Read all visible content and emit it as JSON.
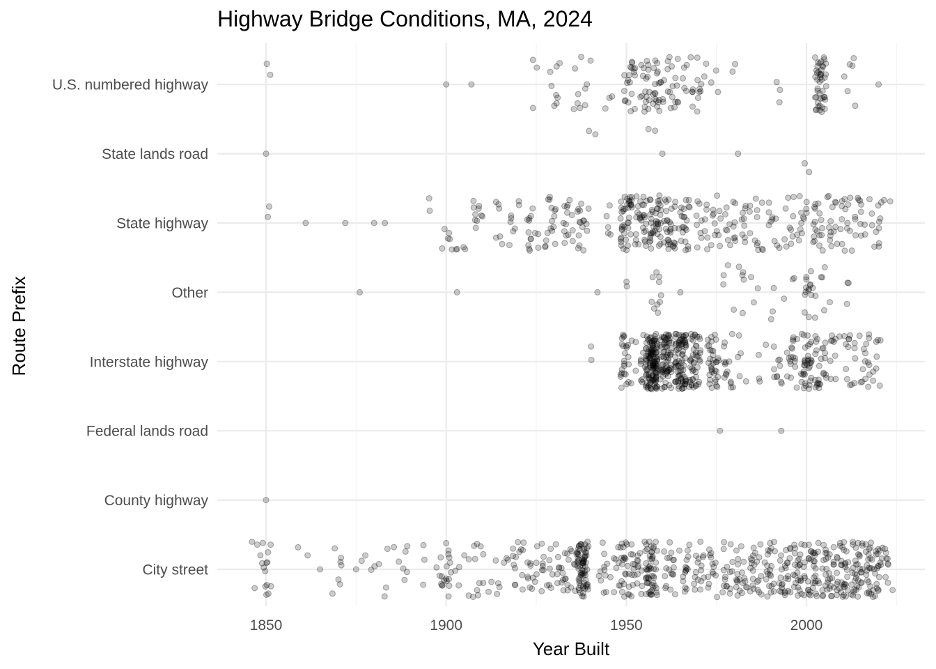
{
  "chart_data": {
    "type": "scatter",
    "title": "Highway Bridge Conditions, MA, 2024",
    "xlabel": "Year Built",
    "ylabel": "Route Prefix",
    "xlim": [
      1840,
      2027
    ],
    "x_ticks": [
      "1850",
      "1900",
      "1950",
      "2000"
    ],
    "x_tick_values": [
      1850,
      1900,
      1950,
      2000
    ],
    "categories": [
      "City street",
      "County highway",
      "Federal lands road",
      "Interstate highway",
      "Other",
      "State highway",
      "State lands road",
      "U.S. numbered highway"
    ],
    "grid": true,
    "legend": "none",
    "jitter_height": 0.4,
    "point_color": "#000000",
    "point_alpha": 0.2,
    "series": [
      {
        "category": "City street",
        "groups": [
          {
            "year": 1846,
            "n": 3
          },
          {
            "year": 1850,
            "n": 14
          },
          {
            "year": 1860,
            "n": 2
          },
          {
            "year": 1865,
            "n": 1
          },
          {
            "year": 1870,
            "n": 7
          },
          {
            "year": 1875,
            "n": 1
          },
          {
            "year": 1878,
            "n": 2
          },
          {
            "year": 1880,
            "n": 3
          },
          {
            "year": 1884,
            "n": 3
          },
          {
            "year": 1887,
            "n": 4
          },
          {
            "year": 1890,
            "n": 3
          },
          {
            "year": 1895,
            "n": 3
          },
          {
            "year": 1897,
            "n": 2
          },
          {
            "year": 1900,
            "n": 16
          },
          {
            "year": 1902,
            "n": 4
          },
          {
            "year": 1905,
            "n": 4
          },
          {
            "year": 1909,
            "n": 10
          },
          {
            "year": 1913,
            "n": 5
          },
          {
            "year": 1916,
            "n": 4
          },
          {
            "year": 1920,
            "n": 14
          },
          {
            "year": 1924,
            "n": 12
          },
          {
            "year": 1928,
            "n": 14
          },
          {
            "year": 1932,
            "n": 14
          },
          {
            "year": 1935,
            "n": 14
          },
          {
            "year": 1938,
            "n": 70
          },
          {
            "year": 1944,
            "n": 12
          },
          {
            "year": 1948,
            "n": 18
          },
          {
            "year": 1951,
            "n": 22
          },
          {
            "year": 1954,
            "n": 14
          },
          {
            "year": 1957,
            "n": 50
          },
          {
            "year": 1962,
            "n": 18
          },
          {
            "year": 1966,
            "n": 16
          },
          {
            "year": 1970,
            "n": 16
          },
          {
            "year": 1974,
            "n": 14
          },
          {
            "year": 1978,
            "n": 16
          },
          {
            "year": 1982,
            "n": 20
          },
          {
            "year": 1986,
            "n": 22
          },
          {
            "year": 1990,
            "n": 22
          },
          {
            "year": 1994,
            "n": 26
          },
          {
            "year": 1998,
            "n": 30
          },
          {
            "year": 2002,
            "n": 32
          },
          {
            "year": 2006,
            "n": 30
          },
          {
            "year": 2010,
            "n": 34
          },
          {
            "year": 2014,
            "n": 34
          },
          {
            "year": 2018,
            "n": 30
          },
          {
            "year": 2021,
            "n": 20
          },
          {
            "year": 2024,
            "n": 3
          }
        ]
      },
      {
        "category": "County highway",
        "groups": [
          {
            "year": 1850,
            "n": 1
          }
        ]
      },
      {
        "category": "Federal lands road",
        "groups": [
          {
            "year": 1976,
            "n": 1
          },
          {
            "year": 1993,
            "n": 1
          }
        ]
      },
      {
        "category": "Interstate highway",
        "groups": [
          {
            "year": 1940,
            "n": 2
          },
          {
            "year": 1950,
            "n": 26
          },
          {
            "year": 1954,
            "n": 12
          },
          {
            "year": 1957,
            "n": 130
          },
          {
            "year": 1961,
            "n": 70
          },
          {
            "year": 1965,
            "n": 80
          },
          {
            "year": 1969,
            "n": 45
          },
          {
            "year": 1974,
            "n": 35
          },
          {
            "year": 1978,
            "n": 15
          },
          {
            "year": 1982,
            "n": 5
          },
          {
            "year": 1988,
            "n": 4
          },
          {
            "year": 1992,
            "n": 10
          },
          {
            "year": 1996,
            "n": 18
          },
          {
            "year": 2000,
            "n": 35
          },
          {
            "year": 2004,
            "n": 25
          },
          {
            "year": 2008,
            "n": 10
          },
          {
            "year": 2012,
            "n": 14
          },
          {
            "year": 2016,
            "n": 15
          },
          {
            "year": 2020,
            "n": 8
          }
        ]
      },
      {
        "category": "Other",
        "groups": [
          {
            "year": 1876,
            "n": 1
          },
          {
            "year": 1903,
            "n": 1
          },
          {
            "year": 1942,
            "n": 1
          },
          {
            "year": 1951,
            "n": 2
          },
          {
            "year": 1957,
            "n": 2
          },
          {
            "year": 1959,
            "n": 8
          },
          {
            "year": 1965,
            "n": 1
          },
          {
            "year": 1977,
            "n": 3
          },
          {
            "year": 1981,
            "n": 6
          },
          {
            "year": 1986,
            "n": 3
          },
          {
            "year": 1990,
            "n": 3
          },
          {
            "year": 1995,
            "n": 3
          },
          {
            "year": 2001,
            "n": 16
          },
          {
            "year": 2005,
            "n": 5
          },
          {
            "year": 2011,
            "n": 3
          }
        ]
      },
      {
        "category": "State highway",
        "groups": [
          {
            "year": 1850,
            "n": 2
          },
          {
            "year": 1861,
            "n": 1
          },
          {
            "year": 1872,
            "n": 1
          },
          {
            "year": 1880,
            "n": 1
          },
          {
            "year": 1883,
            "n": 1
          },
          {
            "year": 1895,
            "n": 2
          },
          {
            "year": 1900,
            "n": 6
          },
          {
            "year": 1904,
            "n": 4
          },
          {
            "year": 1909,
            "n": 10
          },
          {
            "year": 1914,
            "n": 6
          },
          {
            "year": 1919,
            "n": 8
          },
          {
            "year": 1924,
            "n": 14
          },
          {
            "year": 1929,
            "n": 16
          },
          {
            "year": 1934,
            "n": 14
          },
          {
            "year": 1938,
            "n": 16
          },
          {
            "year": 1946,
            "n": 5
          },
          {
            "year": 1950,
            "n": 40
          },
          {
            "year": 1954,
            "n": 28
          },
          {
            "year": 1958,
            "n": 40
          },
          {
            "year": 1962,
            "n": 30
          },
          {
            "year": 1966,
            "n": 22
          },
          {
            "year": 1971,
            "n": 14
          },
          {
            "year": 1975,
            "n": 12
          },
          {
            "year": 1979,
            "n": 14
          },
          {
            "year": 1983,
            "n": 12
          },
          {
            "year": 1987,
            "n": 10
          },
          {
            "year": 1991,
            "n": 10
          },
          {
            "year": 1995,
            "n": 10
          },
          {
            "year": 1999,
            "n": 12
          },
          {
            "year": 2003,
            "n": 18
          },
          {
            "year": 2007,
            "n": 14
          },
          {
            "year": 2011,
            "n": 14
          },
          {
            "year": 2015,
            "n": 12
          },
          {
            "year": 2019,
            "n": 10
          },
          {
            "year": 2022,
            "n": 4
          }
        ]
      },
      {
        "category": "State lands road",
        "groups": [
          {
            "year": 1850,
            "n": 1
          },
          {
            "year": 1940,
            "n": 2
          },
          {
            "year": 1957,
            "n": 2
          },
          {
            "year": 1960,
            "n": 1
          },
          {
            "year": 1981,
            "n": 1
          },
          {
            "year": 2001,
            "n": 2
          }
        ]
      },
      {
        "category": "U.S. numbered highway",
        "groups": [
          {
            "year": 1850,
            "n": 2
          },
          {
            "year": 1900,
            "n": 1
          },
          {
            "year": 1907,
            "n": 1
          },
          {
            "year": 1925,
            "n": 3
          },
          {
            "year": 1930,
            "n": 8
          },
          {
            "year": 1936,
            "n": 6
          },
          {
            "year": 1940,
            "n": 4
          },
          {
            "year": 1945,
            "n": 3
          },
          {
            "year": 1951,
            "n": 20
          },
          {
            "year": 1955,
            "n": 18
          },
          {
            "year": 1959,
            "n": 22
          },
          {
            "year": 1963,
            "n": 16
          },
          {
            "year": 1967,
            "n": 10
          },
          {
            "year": 1971,
            "n": 10
          },
          {
            "year": 1975,
            "n": 3
          },
          {
            "year": 1981,
            "n": 2
          },
          {
            "year": 1993,
            "n": 3
          },
          {
            "year": 2004,
            "n": 45
          },
          {
            "year": 2012,
            "n": 6
          },
          {
            "year": 2020,
            "n": 1
          }
        ]
      }
    ]
  }
}
